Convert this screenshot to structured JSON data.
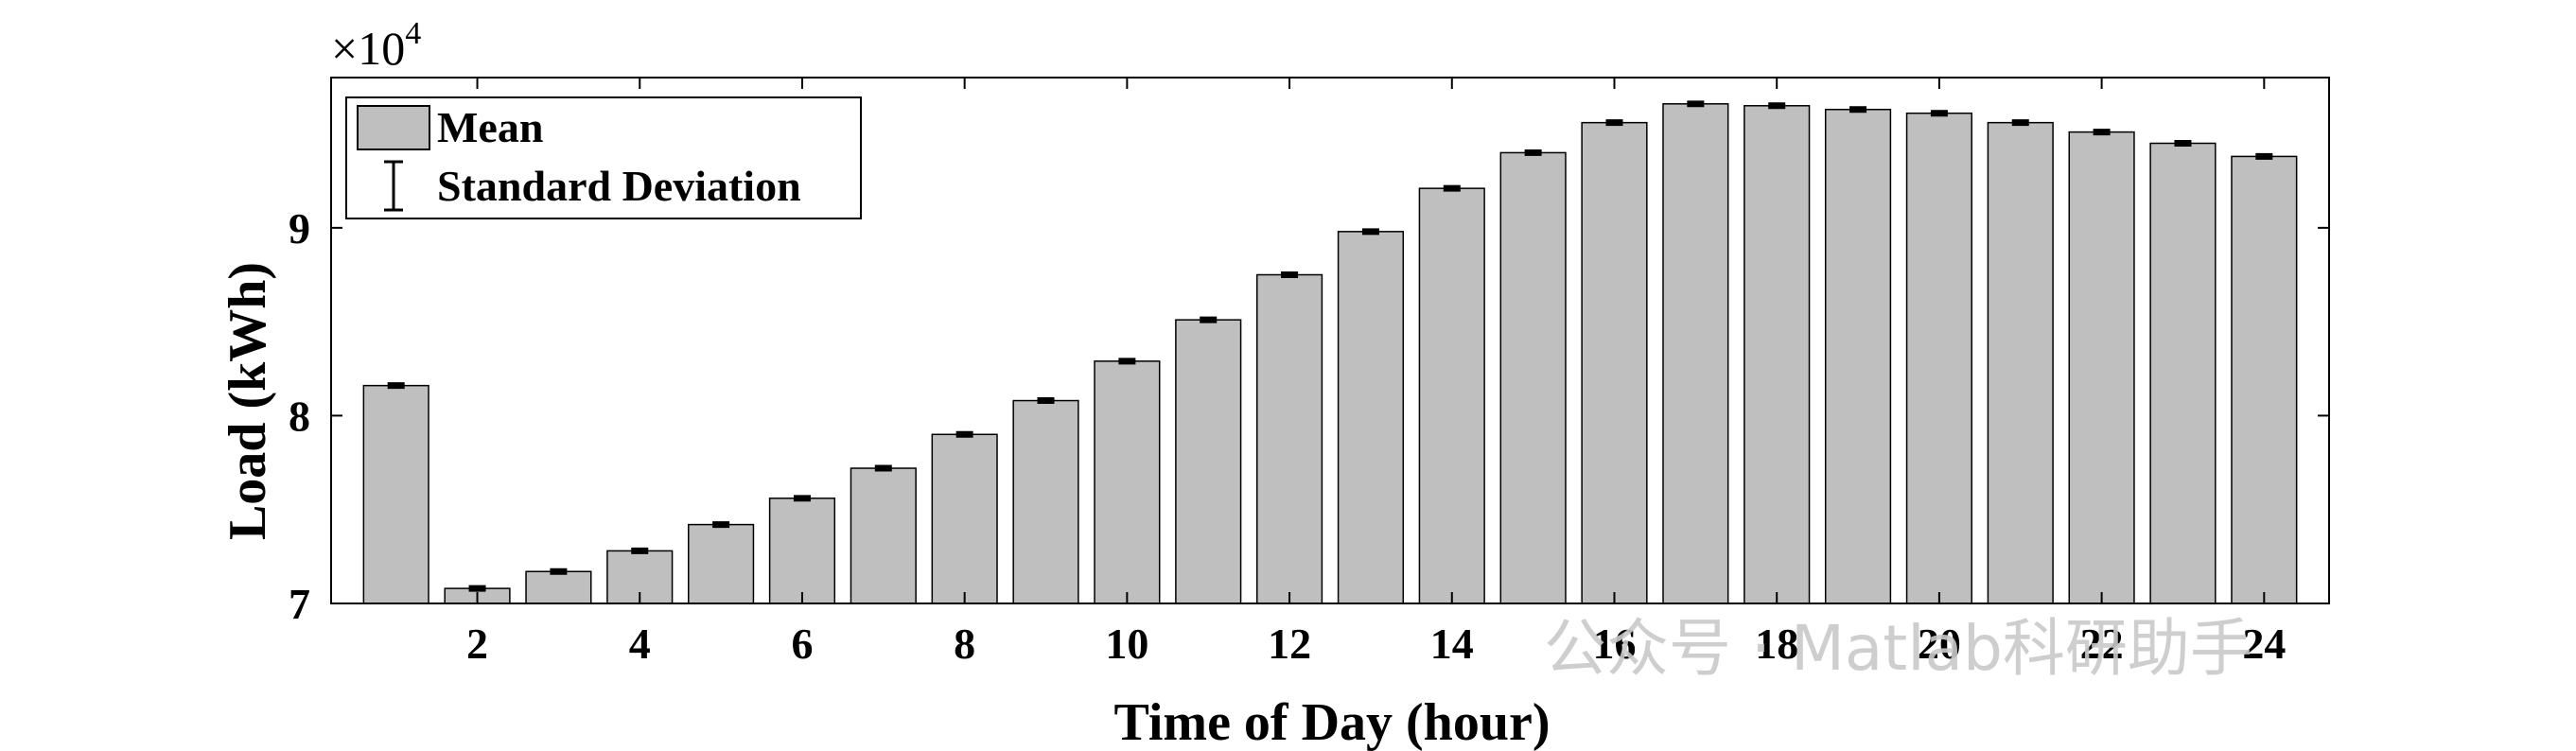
{
  "chart_data": {
    "type": "bar",
    "categories": [
      1,
      2,
      3,
      4,
      5,
      6,
      7,
      8,
      9,
      10,
      11,
      12,
      13,
      14,
      15,
      16,
      17,
      18,
      19,
      20,
      21,
      22,
      23,
      24
    ],
    "series": [
      {
        "name": "Mean",
        "values": [
          81600,
          70800,
          71700,
          72800,
          74200,
          75600,
          77200,
          79000,
          80800,
          82900,
          85100,
          87500,
          89800,
          92100,
          94000,
          95600,
          96600,
          96500,
          96300,
          96100,
          95600,
          95100,
          94500,
          93800
        ],
        "error": [
          100,
          100,
          100,
          100,
          100,
          100,
          100,
          100,
          100,
          100,
          100,
          100,
          100,
          100,
          100,
          100,
          100,
          100,
          100,
          100,
          100,
          100,
          100,
          100
        ]
      }
    ],
    "error_label": "Standard Deviation",
    "xlabel": "Time of Day (hour)",
    "ylabel": "Load (kWh)",
    "xticks": [
      2,
      4,
      6,
      8,
      10,
      12,
      14,
      16,
      18,
      20,
      22,
      24
    ],
    "yticks": [
      7,
      8,
      9
    ],
    "ytick_scale_base": "×10",
    "ytick_scale_exp": "4",
    "ylim": [
      70000,
      98000
    ],
    "xlim": [
      0.2,
      24.8
    ],
    "legend_position": "top-left",
    "grid": false,
    "colors": {
      "bar": "#bfbfbf",
      "bar_edge": "#000000",
      "error": "#000000"
    }
  },
  "watermark": "公众号 · Matlab科研助手"
}
